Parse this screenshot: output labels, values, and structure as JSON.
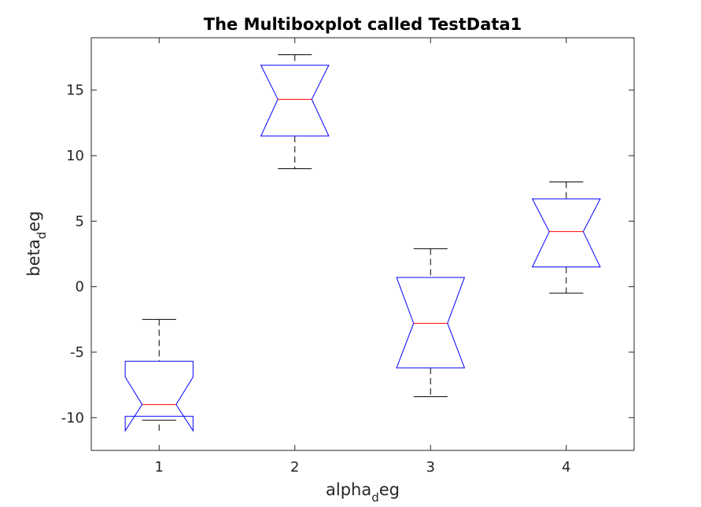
{
  "chart_data": {
    "type": "box",
    "notched": true,
    "title": "The Multiboxplot called TestData1",
    "xlabel": {
      "main": "alpha",
      "sub": "d",
      "tail": "eg"
    },
    "ylabel": {
      "main": "beta",
      "sub": "d",
      "tail": "eg"
    },
    "ylim": [
      -12.5,
      19
    ],
    "xlim": [
      0.5,
      4.5
    ],
    "yticks": [
      -10,
      -5,
      0,
      5,
      10,
      15
    ],
    "ytick_labels": [
      "-10",
      "-5",
      "0",
      "5",
      "10",
      "15"
    ],
    "categories": [
      "1",
      "2",
      "3",
      "4"
    ],
    "grid": false,
    "colors": {
      "box": "#0000ff",
      "median": "#ff0000",
      "whisker": "#000000",
      "axis": "#262626"
    },
    "boxes": [
      {
        "x": 1,
        "whisker_low": -10.2,
        "q1": -9.9,
        "median": -9.0,
        "q3": -5.7,
        "whisker_high": -2.5,
        "notch_low": -11.0,
        "notch_high": -6.9
      },
      {
        "x": 2,
        "whisker_low": 9.0,
        "q1": 11.5,
        "median": 14.3,
        "q3": 16.9,
        "whisker_high": 17.7,
        "notch_low": 11.5,
        "notch_high": 16.9
      },
      {
        "x": 3,
        "whisker_low": -8.4,
        "q1": -6.2,
        "median": -2.8,
        "q3": 0.7,
        "whisker_high": 2.9,
        "notch_low": -6.2,
        "notch_high": 0.7
      },
      {
        "x": 4,
        "whisker_low": -0.5,
        "q1": 1.5,
        "median": 4.2,
        "q3": 6.7,
        "whisker_high": 8.0,
        "notch_low": 1.5,
        "notch_high": 6.7
      }
    ]
  }
}
